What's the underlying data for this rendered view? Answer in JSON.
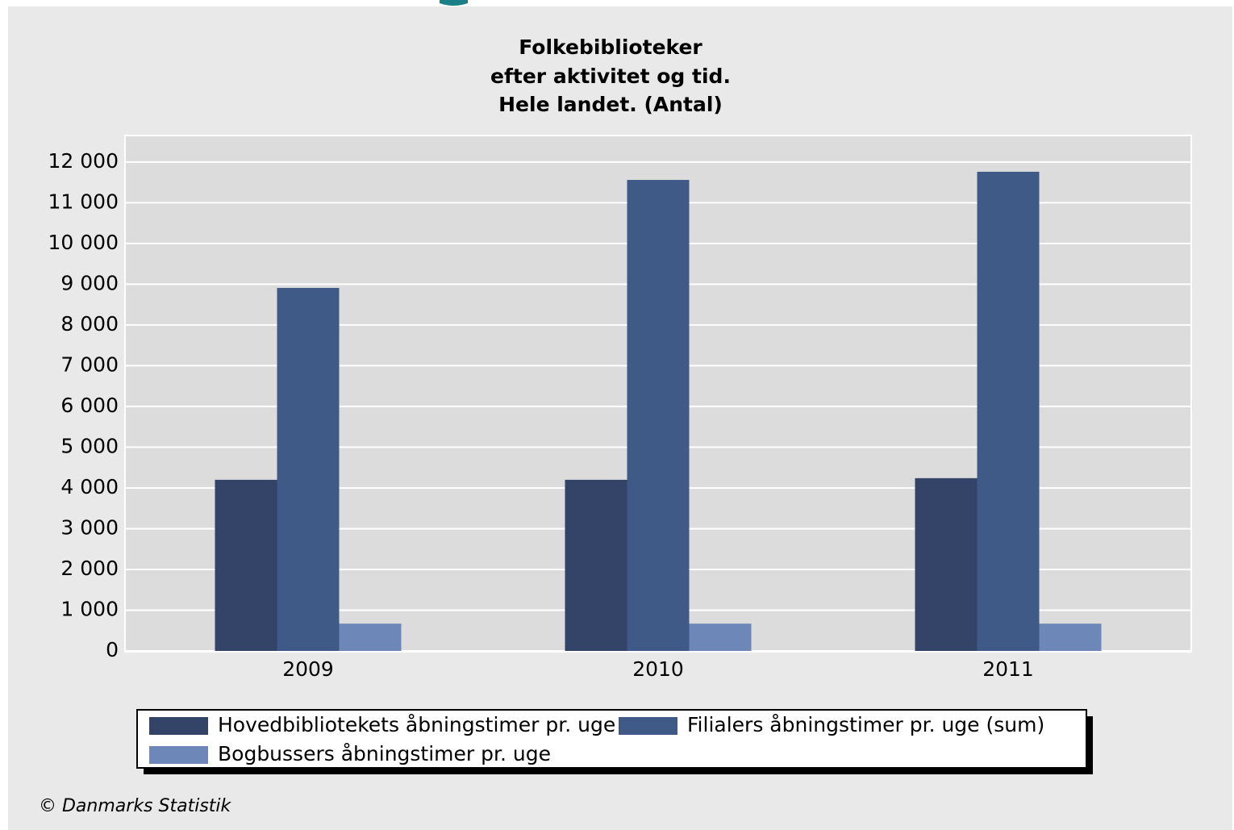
{
  "chart_data": {
    "type": "bar",
    "title": [
      "Folkebiblioteker",
      "efter aktivitet og tid.",
      "Hele landet. (Antal)"
    ],
    "categories": [
      "2009",
      "2010",
      "2011"
    ],
    "series": [
      {
        "name": "Hovedbibliotekets åbningstimer pr. uge",
        "color": "#344469",
        "values": [
          4200,
          4200,
          4240
        ]
      },
      {
        "name": "Filialers åbningstimer pr. uge (sum)",
        "color": "#405a87",
        "values": [
          8910,
          11560,
          11760
        ]
      },
      {
        "name": "Bogbussers åbningstimer pr. uge",
        "color": "#6d88b8",
        "values": [
          670,
          670,
          670
        ]
      }
    ],
    "ylim": [
      0,
      12650
    ],
    "yticks": [
      0,
      {
        "value": 1000,
        "label": "1 000"
      },
      {
        "value": 2000,
        "label": "2 000"
      },
      {
        "value": 3000,
        "label": "3 000"
      },
      {
        "value": 4000,
        "label": "4 000"
      },
      {
        "value": 5000,
        "label": "5 000"
      },
      {
        "value": 6000,
        "label": "6 000"
      },
      {
        "value": 7000,
        "label": "7 000"
      },
      {
        "value": 8000,
        "label": "8 000"
      },
      {
        "value": 9000,
        "label": "9 000"
      },
      {
        "value": 10000,
        "label": "10 000"
      },
      {
        "value": 11000,
        "label": "11 000"
      },
      {
        "value": 12000,
        "label": "12 000"
      }
    ],
    "grid": true,
    "legend": "bottom",
    "source": "© Danmarks Statistik"
  }
}
